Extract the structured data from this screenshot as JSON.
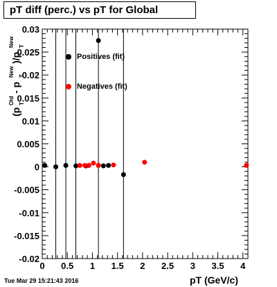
{
  "title": "pT diff (perc.) vs pT for Global",
  "timestamp": "Tue Mar 29 15:21:43 2016",
  "chart_data": {
    "type": "scatter",
    "xlabel": "pT (GeV/c)",
    "ylabel": "(p_T^Old - p_T^New)/p_T^New",
    "xlim": [
      0,
      4.1
    ],
    "ylim": [
      -0.02,
      0.03
    ],
    "x_ticks": [
      "0",
      "0.5",
      "1",
      "1.5",
      "2",
      "2.5",
      "3",
      "3.5",
      "4"
    ],
    "y_ticks": [
      "-0.02",
      "-0.015",
      "-0.01",
      "-0.005",
      "0",
      "0.005",
      "0.01",
      "0.015",
      "0.02",
      "0.025",
      "0.03"
    ],
    "legend_position": "top-left",
    "series": [
      {
        "name": "Positives (fit)",
        "color": "#000000",
        "points": [
          {
            "x": 0.05,
            "y": 0.0003,
            "err": 0
          },
          {
            "x": 0.27,
            "y": 0.0,
            "err": 0.04
          },
          {
            "x": 0.47,
            "y": 0.0003,
            "err": 0.04
          },
          {
            "x": 0.67,
            "y": 0.0002,
            "err": 0.04
          },
          {
            "x": 0.87,
            "y": 0.0002,
            "err": 0
          },
          {
            "x": 1.12,
            "y": 0.0003,
            "err": 0.04
          },
          {
            "x": 1.22,
            "y": 0.0002,
            "err": 0
          },
          {
            "x": 1.32,
            "y": 0.0003,
            "err": 0
          },
          {
            "x": 1.62,
            "y": -0.0017,
            "err": 0.04
          }
        ]
      },
      {
        "name": "Negatives (fit)",
        "color": "#ff0000",
        "points": [
          {
            "x": 0.75,
            "y": 0.0003
          },
          {
            "x": 0.85,
            "y": 0.0003
          },
          {
            "x": 0.93,
            "y": 0.0003
          },
          {
            "x": 1.02,
            "y": 0.0008
          },
          {
            "x": 1.12,
            "y": 0.0003
          },
          {
            "x": 1.42,
            "y": 0.0004
          },
          {
            "x": 2.04,
            "y": 0.001
          },
          {
            "x": 4.07,
            "y": 0.0003
          }
        ]
      }
    ],
    "outlier": {
      "x": 1.12,
      "y": 0.0275,
      "color": "#000000"
    }
  }
}
